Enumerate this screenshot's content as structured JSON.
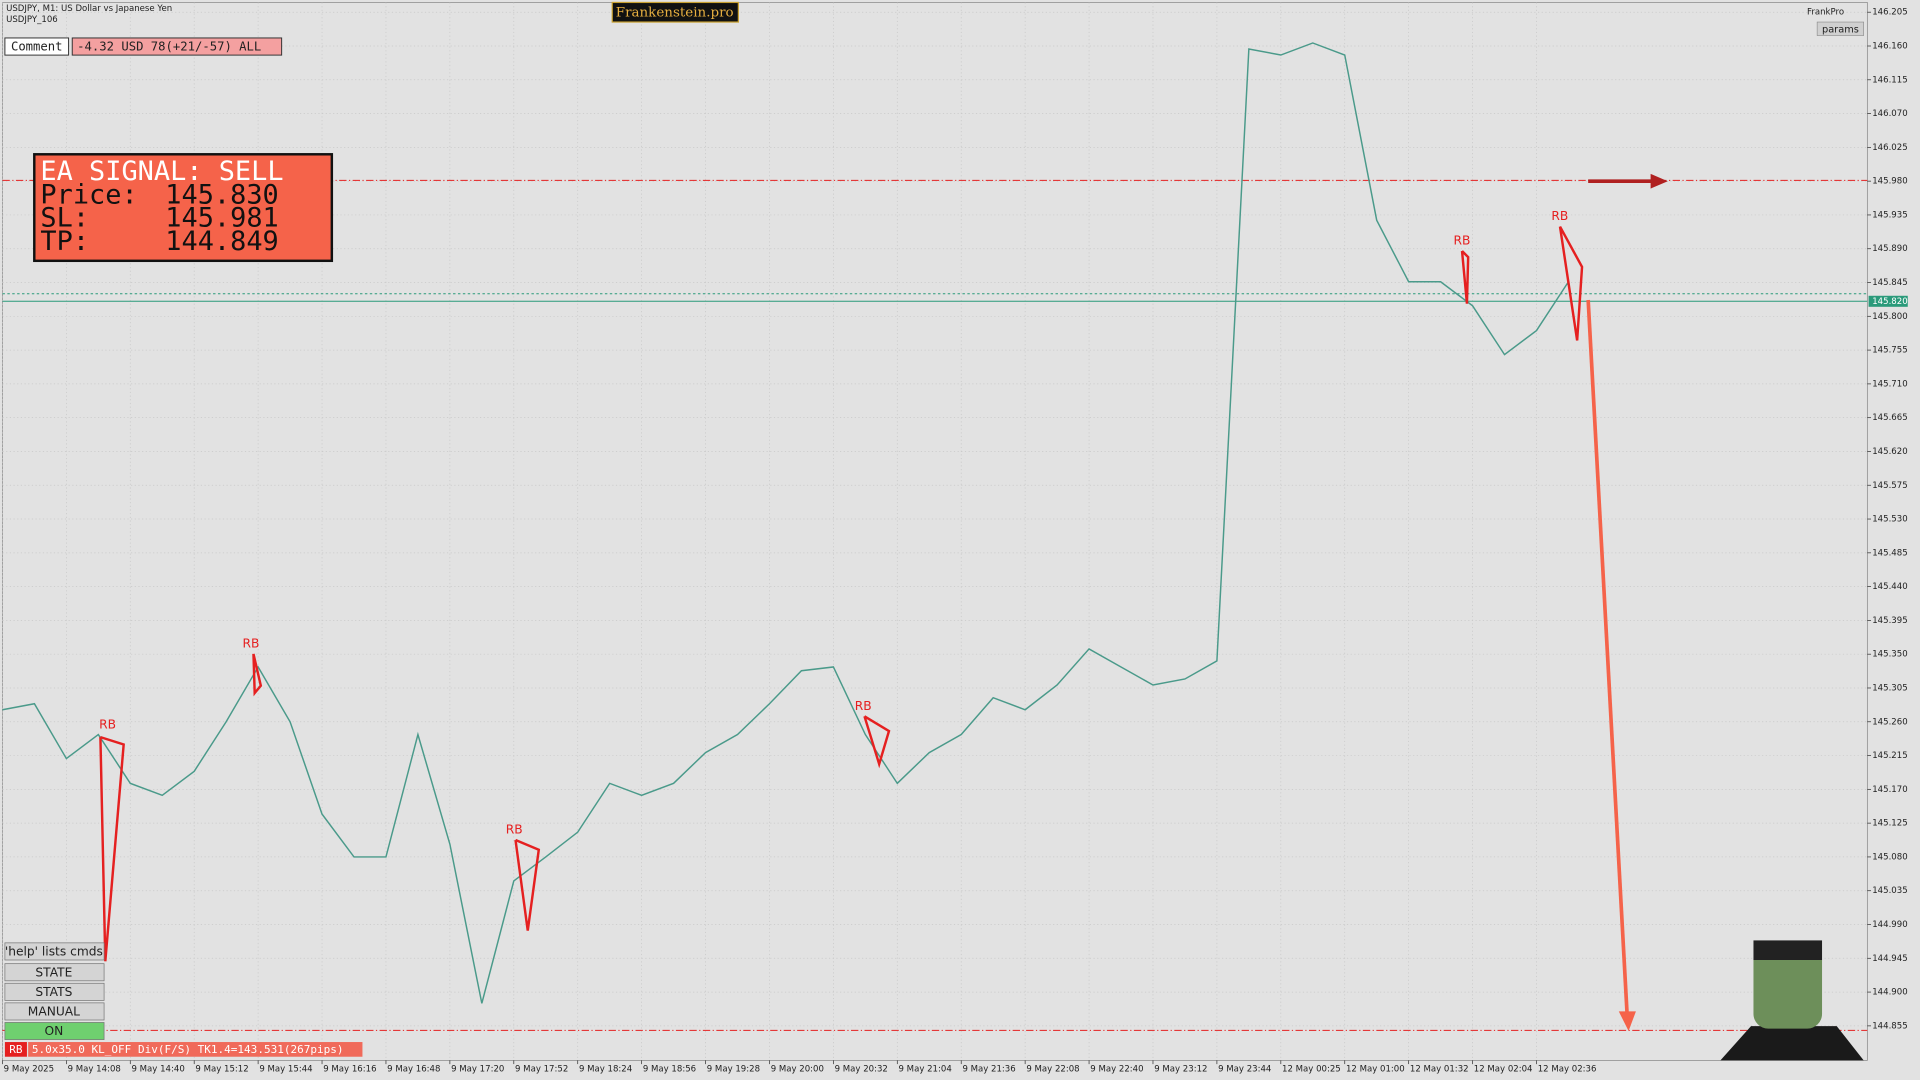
{
  "chart_data": {
    "type": "line",
    "categories": [
      "9 May 2025",
      null,
      "9 May 14:08",
      null,
      "9 May 14:40",
      null,
      "9 May 15:12",
      null,
      "9 May 15:44",
      null,
      "9 May 16:16",
      null,
      "9 May 16:48",
      null,
      "9 May 17:20",
      null,
      "9 May 17:52",
      null,
      "9 May 18:24",
      null,
      "9 May 18:56",
      null,
      "9 May 19:28",
      null,
      "9 May 20:00",
      null,
      "9 May 20:32",
      null,
      "9 May 21:04",
      null,
      "9 May 21:36",
      null,
      "9 May 22:08",
      null,
      "9 May 22:40",
      null,
      "9 May 23:12",
      null,
      "9 May 23:44",
      null,
      "12 May 00:25",
      null,
      "12 May 01:00",
      null,
      "12 May 01:32",
      null,
      "12 May 02:04",
      null,
      "12 May 02:36",
      null
    ],
    "series": [
      {
        "name": "USDJPY",
        "color": "#4a9a8a",
        "values": [
          145.276,
          145.284,
          145.211,
          145.243,
          145.178,
          145.162,
          145.194,
          145.26,
          145.333,
          145.26,
          145.137,
          145.08,
          145.08,
          145.243,
          145.097,
          144.885,
          145.048,
          145.08,
          145.113,
          145.178,
          145.162,
          145.178,
          145.219,
          145.243,
          145.284,
          145.328,
          145.333,
          145.243,
          145.178,
          145.219,
          145.243,
          145.292,
          145.276,
          145.309,
          145.357,
          145.333,
          145.309,
          145.317,
          145.341,
          146.156,
          146.148,
          146.164,
          146.148,
          145.928,
          145.846,
          145.846,
          145.814,
          145.749,
          145.781,
          145.846
        ]
      }
    ],
    "ylim": [
      144.809,
      146.218
    ],
    "yticks": [
      146.205,
      {
        "value": 146.16,
        "label": "146.160"
      },
      146.115,
      {
        "value": 146.07,
        "label": "146.070"
      },
      146.025,
      {
        "value": 145.98,
        "label": "145.980"
      },
      145.935,
      {
        "value": 145.89,
        "label": "145.890"
      },
      145.845,
      {
        "value": 145.8,
        "label": "145.800"
      },
      145.755,
      {
        "value": 145.71,
        "label": "145.710"
      },
      145.665,
      {
        "value": 145.62,
        "label": "145.620"
      },
      145.575,
      {
        "value": 145.53,
        "label": "145.530"
      },
      145.485,
      {
        "value": 145.44,
        "label": "145.440"
      },
      145.395,
      {
        "value": 145.35,
        "label": "145.350"
      },
      145.305,
      {
        "value": 145.26,
        "label": "145.260"
      },
      145.215,
      {
        "value": 145.17,
        "label": "145.170"
      },
      145.125,
      {
        "value": 145.08,
        "label": "145.080"
      },
      145.035,
      {
        "value": 144.99,
        "label": "144.990"
      },
      144.945,
      {
        "value": 144.9,
        "label": "144.900"
      },
      144.855
    ],
    "grid": true,
    "levels": {
      "price": {
        "value": 145.83,
        "label": "145.830"
      },
      "sl": 145.981,
      "tp": 144.849,
      "current": {
        "value": 145.82,
        "label": "145.820"
      }
    },
    "annotations": [
      "RB",
      "RB",
      "RB",
      "RB",
      "RB",
      "RB"
    ]
  },
  "ui": {
    "symbol": "USDJPY, M1:  US Dollar vs Japanese Yen",
    "account": "USDJPY_106",
    "brand": "Frankenstein.pro",
    "comment_label": "Comment",
    "comment": "-4.32 USD 78(+21/-57) ALL",
    "ea": "FrankPro",
    "params": "params",
    "signal": {
      "title": "EA SIGNAL: SELL",
      "price": "Price:",
      "sl": "SL:",
      "tp": "TP:"
    },
    "buttons": [
      "'help' lists cmds",
      "STATE",
      "STATS",
      "MANUAL",
      "ON"
    ],
    "status_tag": "RB",
    "status": "5.0x35.0 KL_OFF Div(F/S) TK1.4=143.531(267pips)"
  }
}
